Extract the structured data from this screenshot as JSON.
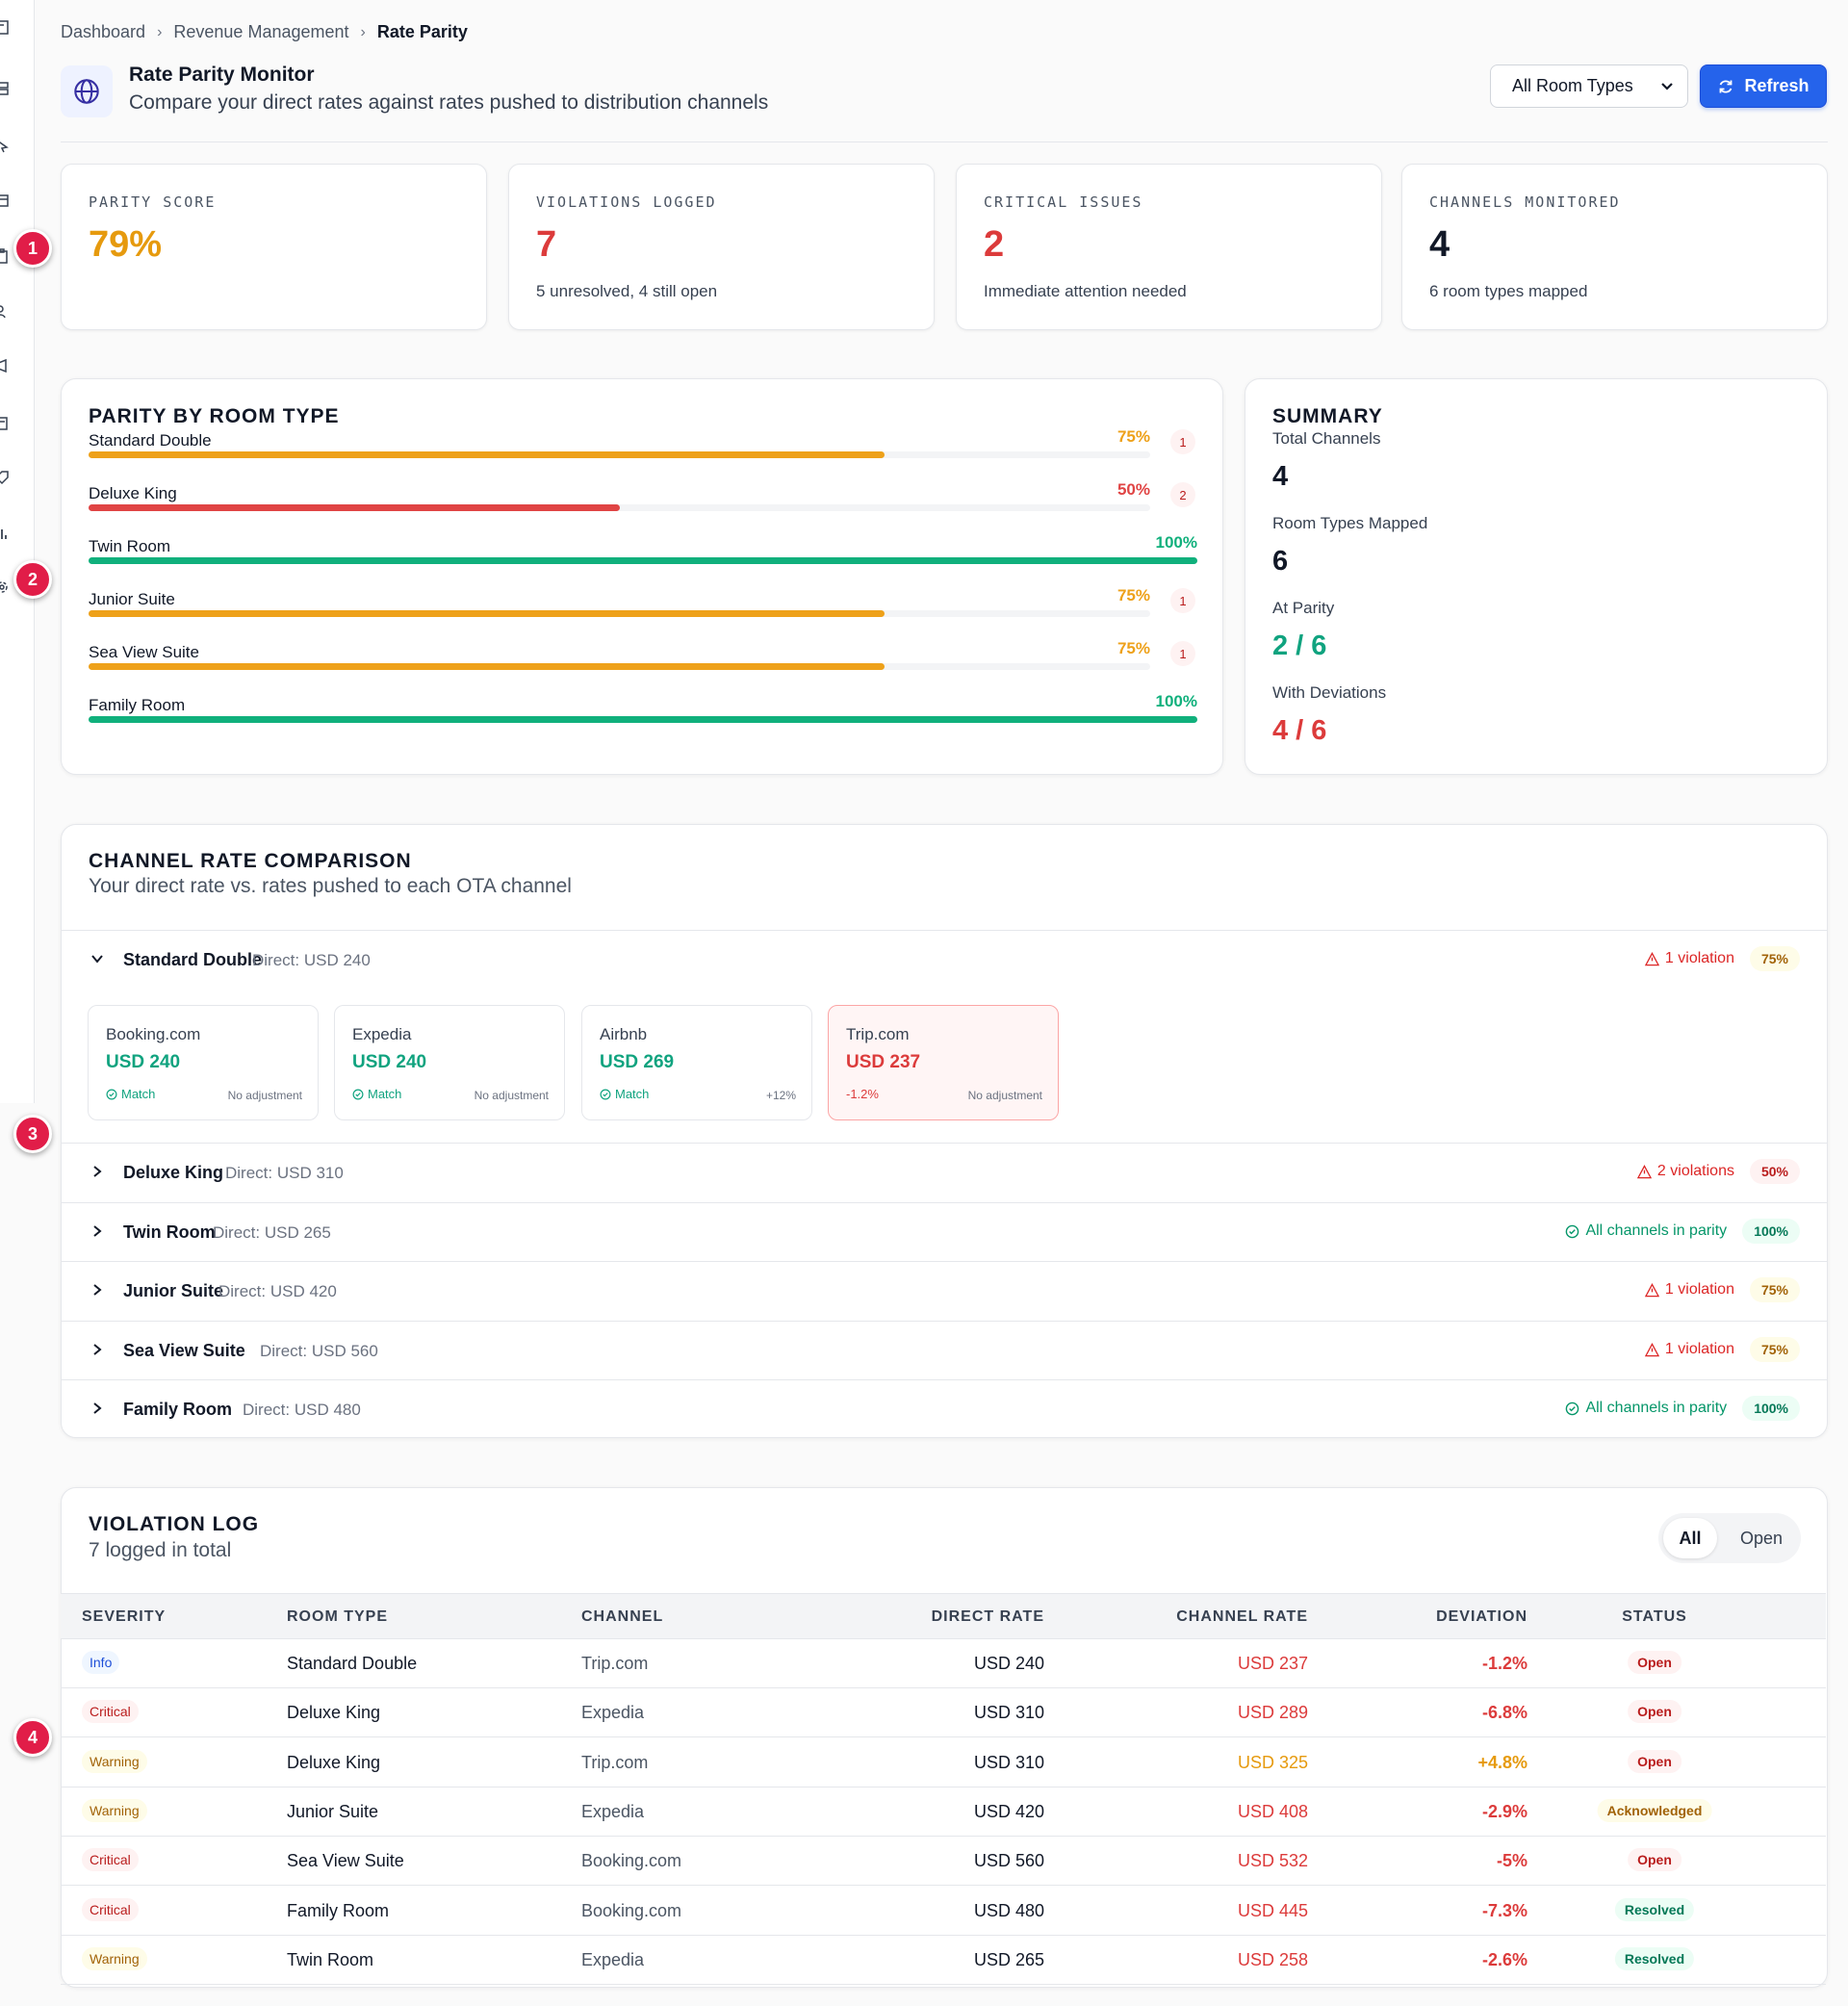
{
  "breadcrumb": [
    "Dashboard",
    "Revenue Management",
    "Rate Parity"
  ],
  "header": {
    "title": "Rate Parity Monitor",
    "subtitle": "Compare your direct rates against rates pushed to distribution channels",
    "room_filter": "All Room Types",
    "refresh_label": "Refresh"
  },
  "markers": [
    "1",
    "2",
    "3",
    "4"
  ],
  "stats": [
    {
      "label": "PARITY SCORE",
      "value": "79%",
      "note": "",
      "color": "#e69a0e"
    },
    {
      "label": "VIOLATIONS LOGGED",
      "value": "7",
      "note": "5 unresolved, 4 still open",
      "color": "#dc3b3b"
    },
    {
      "label": "CRITICAL ISSUES",
      "value": "2",
      "note": "Immediate attention needed",
      "color": "#dc3b3b"
    },
    {
      "label": "CHANNELS MONITORED",
      "value": "4",
      "note": "6 room types mapped",
      "color": "#111827"
    }
  ],
  "parity_by_room": {
    "title": "PARITY BY ROOM TYPE",
    "rows": [
      {
        "name": "Standard Double",
        "pct_label": "75%",
        "fraction": 0.75,
        "violations": "1",
        "level": "warn"
      },
      {
        "name": "Deluxe King",
        "pct_label": "50%",
        "fraction": 0.5,
        "violations": "2",
        "level": "bad"
      },
      {
        "name": "Twin Room",
        "pct_label": "100%",
        "fraction": 1.0,
        "violations": "",
        "level": "ok"
      },
      {
        "name": "Junior Suite",
        "pct_label": "75%",
        "fraction": 0.75,
        "violations": "1",
        "level": "warn"
      },
      {
        "name": "Sea View Suite",
        "pct_label": "75%",
        "fraction": 0.75,
        "violations": "1",
        "level": "warn"
      },
      {
        "name": "Family Room",
        "pct_label": "100%",
        "fraction": 1.0,
        "violations": "",
        "level": "ok"
      }
    ]
  },
  "summary": {
    "title": "SUMMARY",
    "items": [
      {
        "label": "Total Channels",
        "value": "4",
        "color": "#111827"
      },
      {
        "label": "Room Types Mapped",
        "value": "6",
        "color": "#111827"
      },
      {
        "label": "At Parity",
        "value": "2 / 6",
        "color": "#10a37f"
      },
      {
        "label": "With Deviations",
        "value": "4 / 6",
        "color": "#dc3b3b"
      }
    ]
  },
  "channel_comparison": {
    "title": "CHANNEL RATE COMPARISON",
    "subtitle": "Your direct rate vs. rates pushed to each OTA channel",
    "rooms": [
      {
        "name": "Standard Double",
        "direct": "Direct: USD 240",
        "status": "1 violation",
        "ok": false,
        "pct": "75%",
        "level": "warn",
        "expanded": true
      },
      {
        "name": "Deluxe King",
        "direct": "Direct: USD 310",
        "status": "2 violations",
        "ok": false,
        "pct": "50%",
        "level": "bad",
        "expanded": false
      },
      {
        "name": "Twin Room",
        "direct": "Direct: USD 265",
        "status": "All channels in parity",
        "ok": true,
        "pct": "100%",
        "level": "ok",
        "expanded": false
      },
      {
        "name": "Junior Suite",
        "direct": "Direct: USD 420",
        "status": "1 violation",
        "ok": false,
        "pct": "75%",
        "level": "warn",
        "expanded": false
      },
      {
        "name": "Sea View Suite",
        "direct": "Direct: USD 560",
        "status": "1 violation",
        "ok": false,
        "pct": "75%",
        "level": "warn",
        "expanded": false
      },
      {
        "name": "Family Room",
        "direct": "Direct: USD 480",
        "status": "All channels in parity",
        "ok": true,
        "pct": "100%",
        "level": "ok",
        "expanded": false
      }
    ],
    "channels": [
      {
        "name": "Booking.com",
        "rate": "USD 240",
        "status": "Match",
        "adjustment": "No adjustment",
        "match": true
      },
      {
        "name": "Expedia",
        "rate": "USD 240",
        "status": "Match",
        "adjustment": "No adjustment",
        "match": true
      },
      {
        "name": "Airbnb",
        "rate": "USD 269",
        "status": "Match",
        "adjustment": "+12%",
        "match": true
      },
      {
        "name": "Trip.com",
        "rate": "USD 237",
        "status": "-1.2%",
        "adjustment": "No adjustment",
        "match": false
      }
    ]
  },
  "violation_log": {
    "title": "VIOLATION LOG",
    "subtitle": "7 logged in total",
    "filter_all": "All",
    "filter_open": "Open",
    "columns": [
      "SEVERITY",
      "ROOM TYPE",
      "CHANNEL",
      "DIRECT RATE",
      "CHANNEL RATE",
      "DEVIATION",
      "STATUS"
    ],
    "rows": [
      {
        "severity": "Info",
        "room": "Standard Double",
        "channel": "Trip.com",
        "direct": "USD 240",
        "rate": "USD 237",
        "deviation": "-1.2%",
        "status": "Open",
        "sev": "info",
        "dir": "down"
      },
      {
        "severity": "Critical",
        "room": "Deluxe King",
        "channel": "Expedia",
        "direct": "USD 310",
        "rate": "USD 289",
        "deviation": "-6.8%",
        "status": "Open",
        "sev": "critical",
        "dir": "down"
      },
      {
        "severity": "Warning",
        "room": "Deluxe King",
        "channel": "Trip.com",
        "direct": "USD 310",
        "rate": "USD 325",
        "deviation": "+4.8%",
        "status": "Open",
        "sev": "warning",
        "dir": "up"
      },
      {
        "severity": "Warning",
        "room": "Junior Suite",
        "channel": "Expedia",
        "direct": "USD 420",
        "rate": "USD 408",
        "deviation": "-2.9%",
        "status": "Acknowledged",
        "sev": "warning",
        "dir": "down"
      },
      {
        "severity": "Critical",
        "room": "Sea View Suite",
        "channel": "Booking.com",
        "direct": "USD 560",
        "rate": "USD 532",
        "deviation": "-5%",
        "status": "Open",
        "sev": "critical",
        "dir": "down"
      },
      {
        "severity": "Critical",
        "room": "Family Room",
        "channel": "Booking.com",
        "direct": "USD 480",
        "rate": "USD 445",
        "deviation": "-7.3%",
        "status": "Resolved",
        "sev": "critical",
        "dir": "down"
      },
      {
        "severity": "Warning",
        "room": "Twin Room",
        "channel": "Expedia",
        "direct": "USD 265",
        "rate": "USD 258",
        "deviation": "-2.6%",
        "status": "Resolved",
        "sev": "warning",
        "dir": "down"
      }
    ]
  },
  "colors": {
    "warn": "#eea11a",
    "bad": "#e04444",
    "ok": "#10b07c",
    "accent": "#2563eb"
  }
}
